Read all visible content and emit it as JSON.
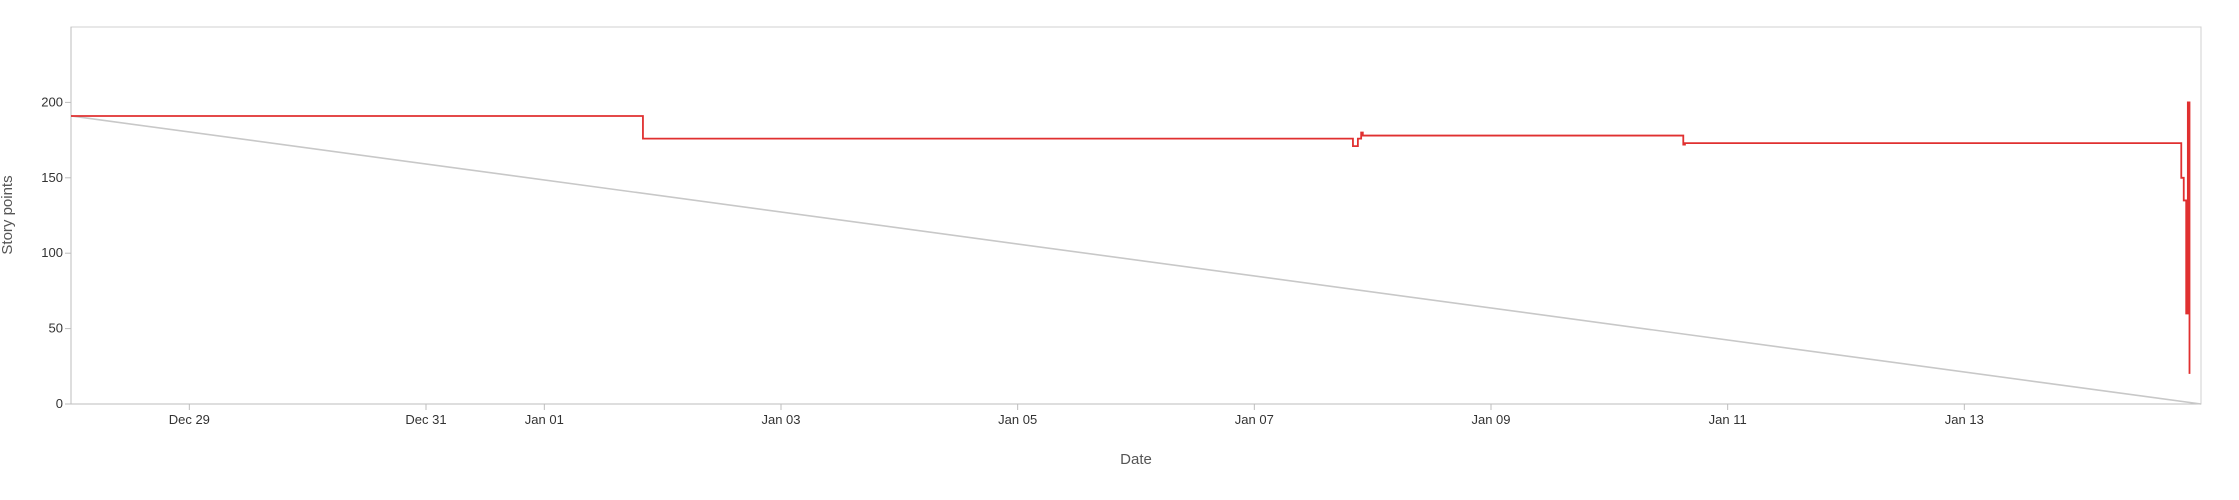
{
  "chart_data": {
    "type": "line",
    "title": "",
    "xlabel": "Date",
    "ylabel": "Story points",
    "xlim": [
      "2023-12-28T00:00",
      "2024-01-15T00:00"
    ],
    "ylim": [
      0,
      250
    ],
    "yticks": [
      0,
      50,
      100,
      150,
      200
    ],
    "xticks": [
      {
        "at": "2023-12-29",
        "label": "Dec 29"
      },
      {
        "at": "2023-12-31",
        "label": "Dec 31"
      },
      {
        "at": "2024-01-01",
        "label": "Jan 01"
      },
      {
        "at": "2024-01-03",
        "label": "Jan 03"
      },
      {
        "at": "2024-01-05",
        "label": "Jan 05"
      },
      {
        "at": "2024-01-07",
        "label": "Jan 07"
      },
      {
        "at": "2024-01-09",
        "label": "Jan 09"
      },
      {
        "at": "2024-01-11",
        "label": "Jan 11"
      },
      {
        "at": "2024-01-13",
        "label": "Jan 13"
      }
    ],
    "grid": false,
    "series": [
      {
        "color": "#c8c8c8",
        "step": false,
        "points": [
          {
            "x": "2023-12-28T00:00",
            "y": 191
          },
          {
            "x": "2024-01-15T00:00",
            "y": 0
          }
        ]
      },
      {
        "color": "#e03030",
        "step": true,
        "points": [
          {
            "x": "2023-12-28T00:00",
            "y": 191
          },
          {
            "x": "2024-01-01T20:00",
            "y": 176
          },
          {
            "x": "2024-01-07T20:00",
            "y": 171
          },
          {
            "x": "2024-01-07T21:00",
            "y": 176
          },
          {
            "x": "2024-01-07T21:40",
            "y": 180
          },
          {
            "x": "2024-01-07T22:00",
            "y": 178
          },
          {
            "x": "2024-01-10T15:00",
            "y": 172
          },
          {
            "x": "2024-01-10T15:20",
            "y": 173
          },
          {
            "x": "2024-01-14T20:00",
            "y": 150
          },
          {
            "x": "2024-01-14T20:30",
            "y": 135
          },
          {
            "x": "2024-01-14T21:00",
            "y": 60
          },
          {
            "x": "2024-01-14T21:20",
            "y": 200
          },
          {
            "x": "2024-01-14T21:40",
            "y": 20
          }
        ]
      }
    ]
  }
}
